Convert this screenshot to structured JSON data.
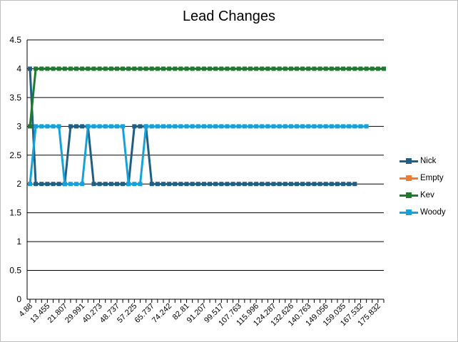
{
  "chart_data": {
    "type": "line",
    "title": "Lead Changes",
    "xlabel": "",
    "ylabel": "",
    "ylim": [
      0,
      4.5
    ],
    "yticks": [
      "0",
      "0.5",
      "1",
      "1.5",
      "2",
      "2.5",
      "3",
      "3.5",
      "4",
      "4.5"
    ],
    "grid": "horizontal",
    "legend_position": "right",
    "x_tick_labels": [
      "4.88",
      "13.455",
      "21.807",
      "29.991",
      "40.273",
      "48.737",
      "57.225",
      "65.737",
      "74.242",
      "82.81",
      "91.207",
      "99.517",
      "107.763",
      "115.996",
      "124.287",
      "132.626",
      "140.763",
      "149.056",
      "159.035",
      "167.532",
      "175.832"
    ],
    "series": [
      {
        "name": "Nick",
        "color": "#1f5f84",
        "values": [
          4,
          2,
          2,
          2,
          2,
          2,
          2,
          3,
          3,
          3,
          3,
          2,
          2,
          2,
          2,
          2,
          2,
          2,
          3,
          3,
          3,
          2,
          2,
          2,
          2,
          2,
          2,
          2,
          2,
          2,
          2,
          2,
          2,
          2,
          2,
          2,
          2,
          2,
          2,
          2,
          2,
          2,
          2,
          2,
          2,
          2,
          2,
          2,
          2,
          2,
          2,
          2,
          2,
          2,
          2,
          2,
          2
        ]
      },
      {
        "name": "Empty",
        "color": "#ed7d31",
        "values": []
      },
      {
        "name": "Kev",
        "color": "#1e7b2d",
        "values": [
          3,
          4,
          4,
          4,
          4,
          4,
          4,
          4,
          4,
          4,
          4,
          4,
          4,
          4,
          4,
          4,
          4,
          4,
          4,
          4,
          4,
          4,
          4,
          4,
          4,
          4,
          4,
          4,
          4,
          4,
          4,
          4,
          4,
          4,
          4,
          4,
          4,
          4,
          4,
          4,
          4,
          4,
          4,
          4,
          4,
          4,
          4,
          4,
          4,
          4,
          4,
          4,
          4,
          4,
          4,
          4,
          4,
          4,
          4,
          4,
          4,
          4
        ]
      },
      {
        "name": "Woody",
        "color": "#15a2da",
        "values": [
          2,
          3,
          3,
          3,
          3,
          3,
          2,
          2,
          2,
          2,
          3,
          3,
          3,
          3,
          3,
          3,
          3,
          2,
          2,
          2,
          3,
          3,
          3,
          3,
          3,
          3,
          3,
          3,
          3,
          3,
          3,
          3,
          3,
          3,
          3,
          3,
          3,
          3,
          3,
          3,
          3,
          3,
          3,
          3,
          3,
          3,
          3,
          3,
          3,
          3,
          3,
          3,
          3,
          3,
          3,
          3,
          3,
          3,
          3
        ]
      }
    ]
  }
}
